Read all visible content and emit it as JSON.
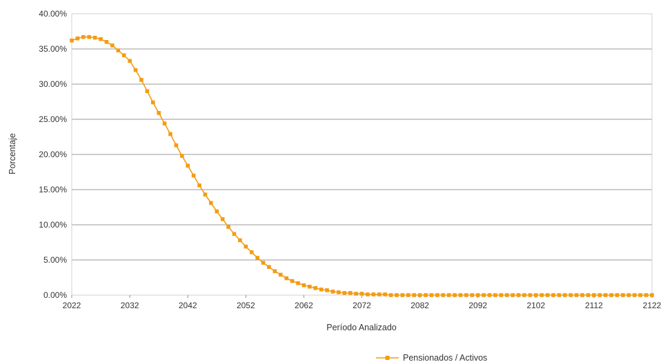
{
  "chart_data": {
    "type": "line",
    "xlabel": "Período Analizado",
    "ylabel": "Porcentaje",
    "xlim": [
      2022,
      2122
    ],
    "ylim": [
      0,
      0.4
    ],
    "x_ticks": [
      "2022",
      "2032",
      "2042",
      "2052",
      "2062",
      "2072",
      "2082",
      "2092",
      "2102",
      "2112",
      "2122"
    ],
    "y_ticks": [
      "0.00%",
      "5.00%",
      "10.00%",
      "15.00%",
      "20.00%",
      "25.00%",
      "30.00%",
      "35.00%",
      "40.00%"
    ],
    "grid": "horizontal",
    "legend": "bottom-center",
    "series": [
      {
        "name": "Pensionados / Activos",
        "color": "#F39C12",
        "x_start": 2022,
        "x_step": 1,
        "values": [
          0.362,
          0.365,
          0.367,
          0.367,
          0.366,
          0.364,
          0.36,
          0.355,
          0.348,
          0.341,
          0.333,
          0.32,
          0.306,
          0.29,
          0.274,
          0.259,
          0.244,
          0.229,
          0.213,
          0.198,
          0.184,
          0.17,
          0.156,
          0.143,
          0.131,
          0.119,
          0.108,
          0.097,
          0.087,
          0.078,
          0.069,
          0.061,
          0.053,
          0.046,
          0.04,
          0.034,
          0.029,
          0.024,
          0.02,
          0.017,
          0.014,
          0.012,
          0.01,
          0.008,
          0.007,
          0.005,
          0.004,
          0.003,
          0.003,
          0.002,
          0.002,
          0.001,
          0.001,
          0.001,
          0.001,
          0.0,
          0.0,
          0.0,
          0.0,
          0.0,
          0.0,
          0.0,
          0.0,
          0.0,
          0.0,
          0.0,
          0.0,
          0.0,
          0.0,
          0.0,
          0.0,
          0.0,
          0.0,
          0.0,
          0.0,
          0.0,
          0.0,
          0.0,
          0.0,
          0.0,
          0.0,
          0.0,
          0.0,
          0.0,
          0.0,
          0.0,
          0.0,
          0.0,
          0.0,
          0.0,
          0.0,
          0.0,
          0.0,
          0.0,
          0.0,
          0.0,
          0.0,
          0.0,
          0.0,
          0.0,
          0.0
        ]
      }
    ]
  }
}
